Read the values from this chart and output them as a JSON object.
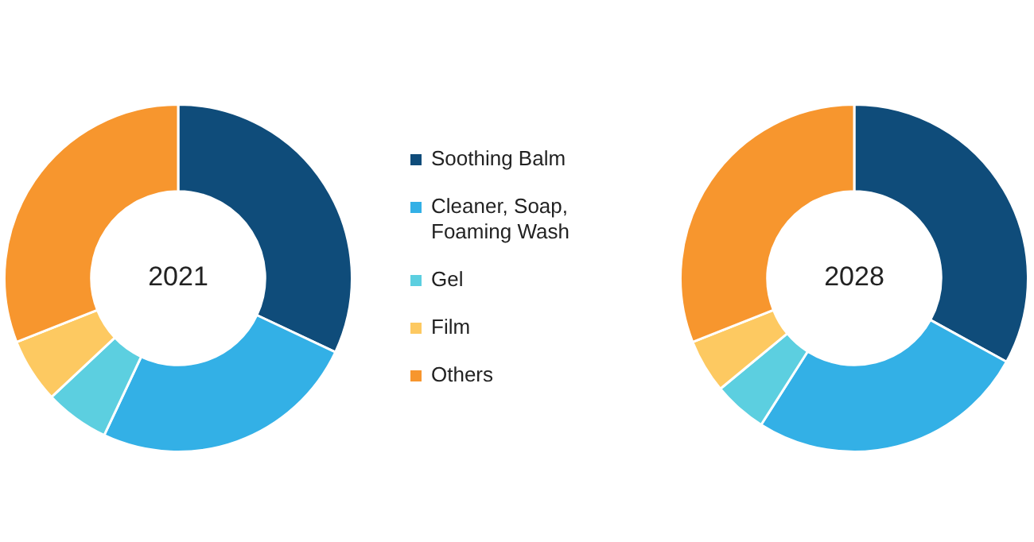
{
  "chart_data": [
    {
      "type": "donut",
      "title": "2021",
      "legend": "right",
      "categories": [
        "Soothing Balm",
        "Cleaner, Soap, Foaming Wash",
        "Gel",
        "Film",
        "Others"
      ],
      "values": [
        32,
        25,
        6,
        6,
        31
      ],
      "colors": [
        "#0f4c7a",
        "#33b0e6",
        "#5ccfe0",
        "#fdc961",
        "#f7962e"
      ]
    },
    {
      "type": "donut",
      "title": "2028",
      "categories": [
        null,
        null,
        null,
        null,
        null
      ],
      "values": [
        33,
        26,
        5,
        5,
        31
      ],
      "colors": [
        "#0f4c7a",
        "#33b0e6",
        "#5ccfe0",
        "#fdc961",
        "#f7962e"
      ]
    }
  ]
}
